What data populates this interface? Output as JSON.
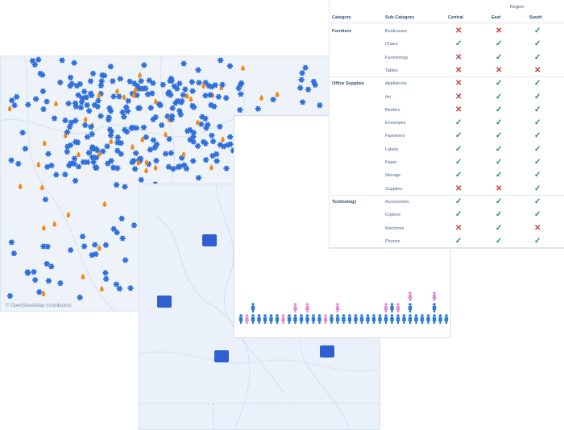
{
  "map_attribution": "© OpenStreetMap contributors",
  "table": {
    "region_label": "Region",
    "headers": {
      "category": "Category",
      "subcategory": "Sub-Category",
      "central": "Central",
      "east": "East",
      "south": "South"
    },
    "groups": [
      {
        "category": "Furniture",
        "rows": [
          {
            "sub": "Bookcases",
            "central": false,
            "east": false,
            "south": true
          },
          {
            "sub": "Chairs",
            "central": true,
            "east": true,
            "south": true
          },
          {
            "sub": "Furnishings",
            "central": false,
            "east": true,
            "south": true
          },
          {
            "sub": "Tables",
            "central": false,
            "east": false,
            "south": false
          }
        ]
      },
      {
        "category": "Office Supplies",
        "rows": [
          {
            "sub": "Appliances",
            "central": false,
            "east": true,
            "south": true
          },
          {
            "sub": "Art",
            "central": false,
            "east": true,
            "south": true
          },
          {
            "sub": "Binders",
            "central": false,
            "east": true,
            "south": true
          },
          {
            "sub": "Envelopes",
            "central": true,
            "east": true,
            "south": true
          },
          {
            "sub": "Fasteners",
            "central": true,
            "east": true,
            "south": true
          },
          {
            "sub": "Labels",
            "central": true,
            "east": true,
            "south": true
          },
          {
            "sub": "Paper",
            "central": true,
            "east": true,
            "south": true
          },
          {
            "sub": "Storage",
            "central": true,
            "east": true,
            "south": true
          },
          {
            "sub": "Supplies",
            "central": false,
            "east": false,
            "south": true
          }
        ]
      },
      {
        "category": "Technology",
        "rows": [
          {
            "sub": "Accessories",
            "central": true,
            "east": true,
            "south": true
          },
          {
            "sub": "Copiers",
            "central": true,
            "east": true,
            "south": true
          },
          {
            "sub": "Machines",
            "central": false,
            "east": true,
            "south": false
          },
          {
            "sub": "Phones",
            "central": true,
            "east": true,
            "south": true
          }
        ]
      }
    ]
  },
  "pictogram": {
    "colors": {
      "male": "#2b7bd6",
      "female": "#e58ad6"
    },
    "stack_heights": [
      1,
      1,
      2,
      1,
      1,
      1,
      1,
      1,
      1,
      2,
      1,
      2,
      1,
      1,
      1,
      1,
      2,
      1,
      1,
      1,
      1,
      1,
      1,
      1,
      2,
      2,
      2,
      1,
      3,
      1,
      1,
      1,
      3,
      1,
      1,
      2
    ],
    "female_top": [
      false,
      true,
      false,
      false,
      false,
      false,
      false,
      true,
      false,
      true,
      false,
      true,
      false,
      false,
      true,
      false,
      true,
      false,
      false,
      false,
      false,
      false,
      false,
      false,
      true,
      false,
      true,
      false,
      true,
      false,
      false,
      false,
      true,
      false,
      false,
      false
    ]
  },
  "icons": {
    "map1_markers": "snowflake-icon",
    "map1_fire": "fire-icon",
    "map2_markers": "rv-camper-icon"
  },
  "accent": "#2f6fdb"
}
